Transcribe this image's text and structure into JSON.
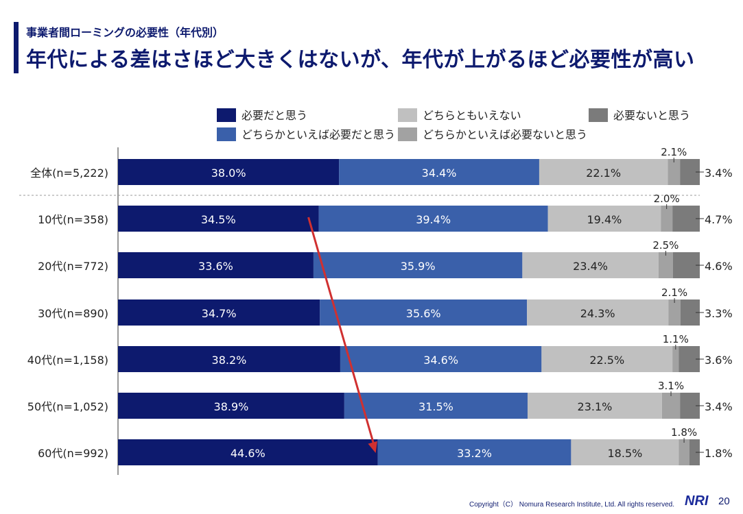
{
  "header": {
    "subtitle": "事業者間ローミングの必要性（年代別）",
    "title": "年代による差はさほど大きくはないが、年代が上がるほど必要性が高い"
  },
  "footer": {
    "copyright": "Copyright（C） Nomura Research Institute, Ltd. All rights reserved.",
    "logo": "NRI",
    "page_number": "20"
  },
  "chart_data": {
    "type": "bar",
    "orientation": "horizontal",
    "stacked": true,
    "normalized_percent": true,
    "categories": [
      "全体(n=5,222)",
      "10代(n=358)",
      "20代(n=772)",
      "30代(n=890)",
      "40代(n=1,158)",
      "50代(n=1,052)",
      "60代(n=992)"
    ],
    "series": [
      {
        "name": "必要だと思う",
        "color": "#0d1a6e",
        "values": [
          38.0,
          34.5,
          33.6,
          34.7,
          38.2,
          38.9,
          44.6
        ]
      },
      {
        "name": "どちらかといえば必要だと思う",
        "color": "#3a60aa",
        "values": [
          34.4,
          39.4,
          35.9,
          35.6,
          34.6,
          31.5,
          33.2
        ]
      },
      {
        "name": "どちらともいえない",
        "color": "#c0c0c0",
        "values": [
          22.1,
          19.4,
          23.4,
          24.3,
          22.5,
          23.1,
          18.5
        ]
      },
      {
        "name": "どちらかといえば必要ないと思う",
        "color": "#a2a2a2",
        "values": [
          2.1,
          2.0,
          2.5,
          2.1,
          1.1,
          3.1,
          1.8
        ]
      },
      {
        "name": "必要ないと思う",
        "color": "#7b7b7b",
        "values": [
          3.4,
          4.7,
          4.6,
          3.3,
          3.6,
          3.4,
          1.8
        ]
      }
    ],
    "legend_order": [
      0,
      2,
      4,
      1,
      3
    ],
    "legend_position": "top",
    "annotation": "trend arrow from 10代 to 60代 along the 必要だと思う boundary",
    "annotation_color": "#d03030"
  }
}
